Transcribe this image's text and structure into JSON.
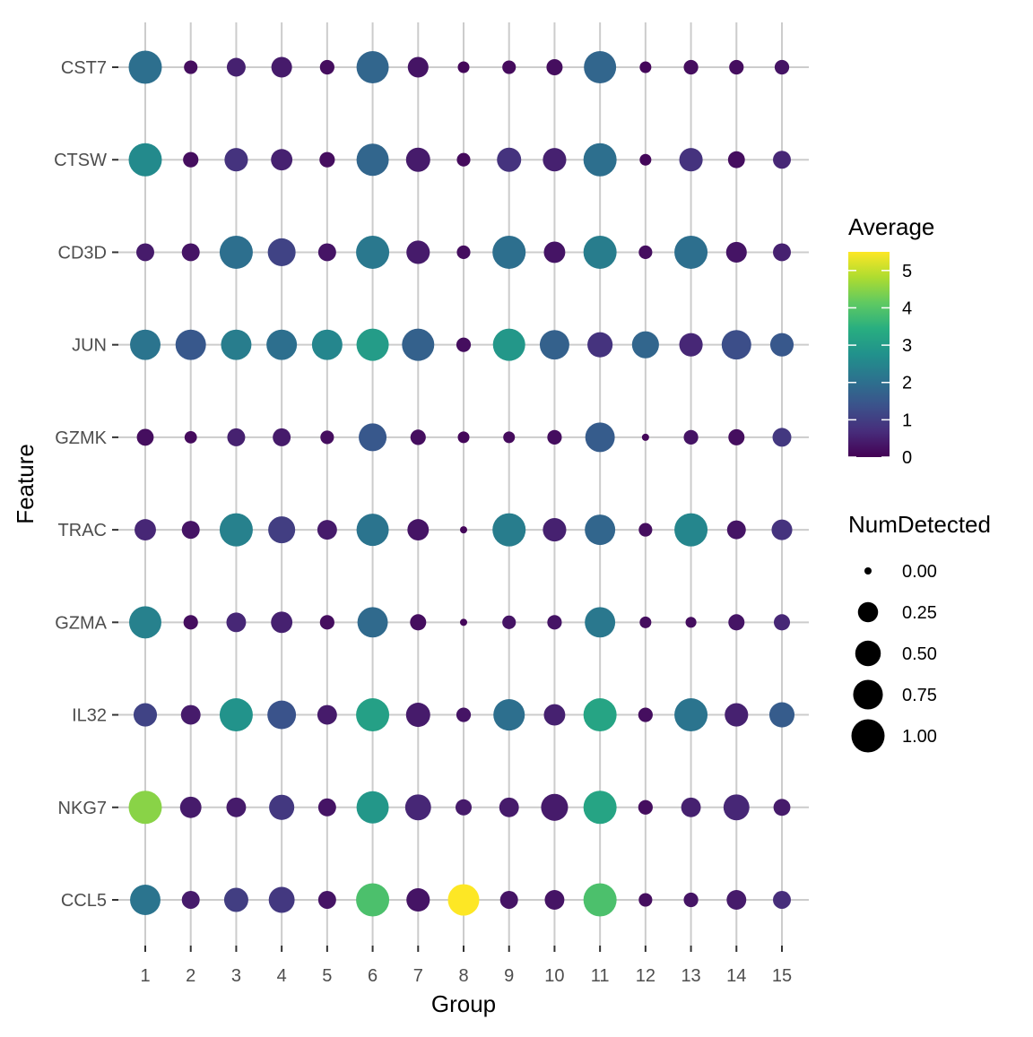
{
  "chart_data": {
    "type": "dot",
    "xlabel": "Group",
    "ylabel": "Feature",
    "categories": [
      "1",
      "2",
      "3",
      "4",
      "5",
      "6",
      "7",
      "8",
      "9",
      "10",
      "11",
      "12",
      "13",
      "14",
      "15"
    ],
    "features": [
      "CST7",
      "CTSW",
      "CD3D",
      "JUN",
      "GZMK",
      "TRAC",
      "GZMA",
      "IL32",
      "NKG7",
      "CCL5"
    ],
    "grid": true,
    "color_legend": {
      "title": "Average",
      "ticks": [
        "0",
        "1",
        "2",
        "3",
        "4",
        "5"
      ],
      "range": [
        0,
        5.5
      ],
      "colormap": "viridis"
    },
    "size_legend": {
      "title": "NumDetected",
      "ticks": [
        "0.00",
        "0.25",
        "0.50",
        "0.75",
        "1.00"
      ],
      "values": [
        0,
        0.25,
        0.5,
        0.75,
        1.0
      ]
    },
    "legend_placement": "right",
    "series": [
      {
        "feature": "CST7",
        "average": [
          2.0,
          0.2,
          0.5,
          0.4,
          0.2,
          1.8,
          0.3,
          0.1,
          0.15,
          0.2,
          1.8,
          0.1,
          0.2,
          0.2,
          0.3
        ],
        "num_detected": [
          1.0,
          0.06,
          0.2,
          0.27,
          0.08,
          0.93,
          0.27,
          0.03,
          0.06,
          0.12,
          0.93,
          0.03,
          0.08,
          0.08,
          0.08
        ]
      },
      {
        "feature": "CTSW",
        "average": [
          2.6,
          0.2,
          0.8,
          0.5,
          0.2,
          1.8,
          0.4,
          0.15,
          0.8,
          0.5,
          2.0,
          0.1,
          0.8,
          0.2,
          0.6
        ],
        "num_detected": [
          1.0,
          0.1,
          0.39,
          0.3,
          0.1,
          0.93,
          0.43,
          0.06,
          0.43,
          0.39,
          1.0,
          0.03,
          0.39,
          0.14,
          0.17
        ]
      },
      {
        "feature": "CD3D",
        "average": [
          0.4,
          0.3,
          2.0,
          1.1,
          0.3,
          2.2,
          0.4,
          0.2,
          2.0,
          0.3,
          2.3,
          0.2,
          2.0,
          0.3,
          0.5
        ],
        "num_detected": [
          0.17,
          0.17,
          1.0,
          0.63,
          0.17,
          1.0,
          0.39,
          0.06,
          1.0,
          0.3,
          1.0,
          0.06,
          1.0,
          0.27,
          0.17
        ]
      },
      {
        "feature": "JUN",
        "average": [
          2.1,
          1.5,
          2.3,
          2.0,
          2.5,
          3.0,
          1.7,
          0.2,
          2.9,
          1.7,
          0.8,
          1.8,
          0.6,
          1.3,
          1.5
        ],
        "num_detected": [
          0.8,
          0.8,
          0.8,
          0.8,
          0.8,
          0.93,
          0.93,
          0.08,
          0.93,
          0.74,
          0.48,
          0.58,
          0.39,
          0.74,
          0.39
        ]
      },
      {
        "feature": "GZMK",
        "average": [
          0.2,
          0.15,
          0.5,
          0.4,
          0.2,
          1.5,
          0.2,
          0.1,
          0.15,
          0.2,
          1.6,
          0.1,
          0.3,
          0.2,
          0.9
        ],
        "num_detected": [
          0.14,
          0.04,
          0.17,
          0.17,
          0.06,
          0.63,
          0.1,
          0.03,
          0.03,
          0.08,
          0.74,
          0.0,
          0.08,
          0.12,
          0.2
        ]
      },
      {
        "feature": "TRAC",
        "average": [
          0.6,
          0.3,
          2.4,
          1.0,
          0.4,
          2.1,
          0.3,
          0.1,
          2.3,
          0.5,
          1.8,
          0.2,
          2.5,
          0.3,
          0.8
        ],
        "num_detected": [
          0.3,
          0.17,
          1.0,
          0.58,
          0.23,
          0.93,
          0.3,
          0.0,
          1.0,
          0.39,
          0.8,
          0.06,
          1.0,
          0.2,
          0.27
        ]
      },
      {
        "feature": "GZMA",
        "average": [
          2.4,
          0.2,
          0.6,
          0.5,
          0.2,
          1.9,
          0.2,
          0.1,
          0.3,
          0.3,
          2.2,
          0.2,
          0.2,
          0.3,
          0.6
        ],
        "num_detected": [
          0.93,
          0.08,
          0.23,
          0.3,
          0.08,
          0.8,
          0.12,
          0.0,
          0.06,
          0.08,
          0.8,
          0.03,
          0.02,
          0.12,
          0.12
        ]
      },
      {
        "feature": "IL32",
        "average": [
          1.1,
          0.4,
          2.8,
          1.4,
          0.4,
          3.1,
          0.4,
          0.3,
          2.0,
          0.5,
          3.2,
          0.2,
          2.1,
          0.5,
          1.6
        ],
        "num_detected": [
          0.39,
          0.23,
          1.0,
          0.68,
          0.23,
          1.0,
          0.43,
          0.08,
          0.87,
          0.3,
          1.0,
          0.08,
          1.0,
          0.39,
          0.48
        ]
      },
      {
        "feature": "NKG7",
        "average": [
          4.5,
          0.4,
          0.4,
          0.9,
          0.3,
          2.9,
          0.6,
          0.4,
          0.4,
          0.4,
          3.2,
          0.2,
          0.5,
          0.6,
          0.4
        ],
        "num_detected": [
          1.0,
          0.3,
          0.23,
          0.48,
          0.17,
          0.93,
          0.52,
          0.12,
          0.23,
          0.58,
          1.0,
          0.08,
          0.23,
          0.52,
          0.14
        ]
      },
      {
        "feature": "CCL5",
        "average": [
          2.1,
          0.4,
          1.0,
          0.9,
          0.3,
          3.9,
          0.3,
          5.5,
          0.3,
          0.3,
          3.9,
          0.2,
          0.3,
          0.4,
          0.7
        ],
        "num_detected": [
          0.8,
          0.17,
          0.43,
          0.52,
          0.17,
          1.0,
          0.39,
          0.87,
          0.17,
          0.23,
          1.0,
          0.06,
          0.08,
          0.23,
          0.17
        ]
      }
    ]
  }
}
